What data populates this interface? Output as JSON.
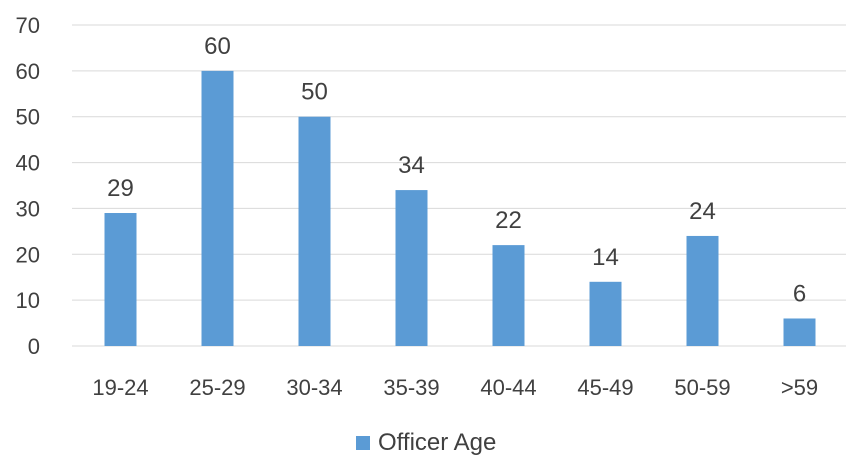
{
  "chart_data": {
    "type": "bar",
    "categories": [
      "19-24",
      "25-29",
      "30-34",
      "35-39",
      "40-44",
      "45-49",
      "50-59",
      ">59"
    ],
    "series": [
      {
        "name": "Officer Age",
        "values": [
          29,
          60,
          50,
          34,
          22,
          14,
          24,
          6
        ]
      }
    ],
    "ylim": [
      0,
      70
    ],
    "yticks": [
      0,
      10,
      20,
      30,
      40,
      50,
      60,
      70
    ],
    "grid": true,
    "legend": "bottom",
    "bar_color": "#5B9BD5",
    "grid_color": "#D9D9D9",
    "text_color": "#404040"
  }
}
